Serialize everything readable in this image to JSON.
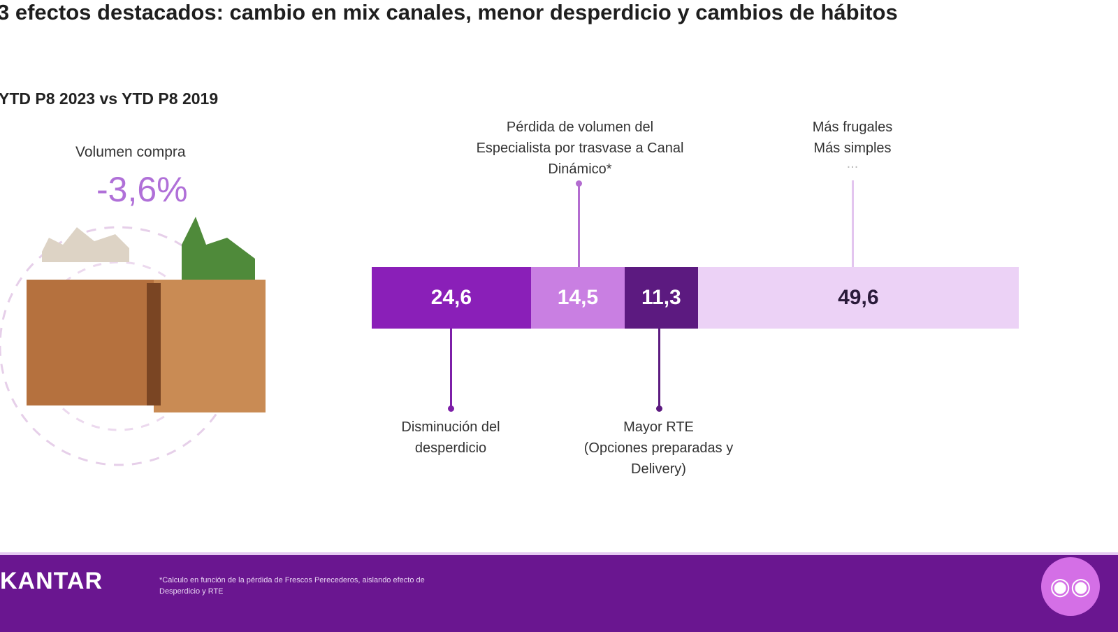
{
  "title": "3 efectos destacados: cambio en mix canales, menor desperdicio y cambios de hábitos",
  "period": "YTD P8 2023 vs YTD P8 2019",
  "volume": {
    "label": "Volumen  compra",
    "value": "-3,6%"
  },
  "chart_data": {
    "type": "bar",
    "stacked": true,
    "orientation": "horizontal",
    "categories": [
      "Disminución del desperdicio",
      "Pérdida de volumen del Especialista por trasvase a Canal Dinámico*",
      "Mayor RTE (Opciones preparadas y Delivery)",
      "Más frugales Más simples ..."
    ],
    "values": [
      24.6,
      14.5,
      11.3,
      49.6
    ],
    "value_labels": [
      "24,6",
      "14,5",
      "11,3",
      "49,6"
    ],
    "colors": [
      "#8a1fb8",
      "#c97fe2",
      "#5c1a80",
      "#ecd2f6"
    ],
    "label_colors": [
      "#ffffff",
      "#ffffff",
      "#ffffff",
      "#2a1a3a"
    ],
    "xlim": [
      0,
      100
    ]
  },
  "annotations": {
    "a1": [
      "Disminución del",
      "desperdicio"
    ],
    "a2": [
      "Pérdida de volumen del",
      "Especialista por trasvase a Canal",
      "Dinámico*"
    ],
    "a3": [
      "Mayor RTE",
      "(Opciones preparadas y",
      "Delivery)"
    ],
    "a4": [
      "Más frugales",
      "Más simples",
      "..."
    ]
  },
  "footer": {
    "logo": "KANTAR",
    "note": "*Calculo en función de la pérdida de Frescos Perecederos, aislando efecto de Desperdicio y RTE"
  }
}
